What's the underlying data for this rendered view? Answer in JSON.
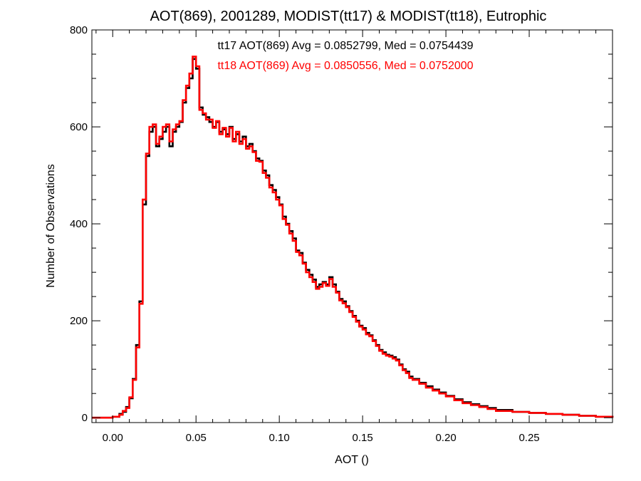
{
  "chart_data": {
    "type": "line",
    "title": "AOT(869), 2001289, MODIST(tt17) & MODIST(tt18), Eutrophic",
    "xlabel": "AOT ()",
    "ylabel": "Number of Observations",
    "xlim": [
      -0.0125,
      0.3
    ],
    "ylim": [
      -10,
      800
    ],
    "x_ticks": [
      0.0,
      0.05,
      0.1,
      0.15,
      0.2,
      0.25
    ],
    "x_tick_labels": [
      "0.00",
      "0.05",
      "0.10",
      "0.15",
      "0.20",
      "0.25"
    ],
    "y_ticks": [
      0,
      200,
      400,
      600,
      800
    ],
    "y_tick_labels": [
      "0",
      "200",
      "400",
      "600",
      "800"
    ],
    "grid": false,
    "step": "histogram",
    "annotations": [
      {
        "text": "tt17 AOT(869) Avg = 0.0852799, Med = 0.0754439",
        "color": "#000000"
      },
      {
        "text": "tt18 AOT(869) Avg = 0.0850556, Med = 0.0752000",
        "color": "#ff0000"
      }
    ],
    "series": [
      {
        "color": "#000000",
        "x": [
          -0.0125,
          0.0,
          0.004,
          0.006,
          0.008,
          0.01,
          0.012,
          0.014,
          0.016,
          0.018,
          0.02,
          0.022,
          0.024,
          0.026,
          0.028,
          0.03,
          0.032,
          0.034,
          0.036,
          0.038,
          0.04,
          0.042,
          0.044,
          0.046,
          0.048,
          0.05,
          0.052,
          0.054,
          0.056,
          0.058,
          0.06,
          0.062,
          0.064,
          0.066,
          0.068,
          0.07,
          0.072,
          0.074,
          0.076,
          0.078,
          0.08,
          0.082,
          0.084,
          0.086,
          0.088,
          0.09,
          0.092,
          0.094,
          0.096,
          0.098,
          0.1,
          0.102,
          0.104,
          0.106,
          0.108,
          0.11,
          0.112,
          0.114,
          0.116,
          0.118,
          0.12,
          0.122,
          0.124,
          0.126,
          0.128,
          0.13,
          0.132,
          0.134,
          0.136,
          0.138,
          0.14,
          0.142,
          0.144,
          0.146,
          0.148,
          0.15,
          0.152,
          0.154,
          0.156,
          0.158,
          0.16,
          0.162,
          0.164,
          0.166,
          0.168,
          0.17,
          0.172,
          0.174,
          0.176,
          0.178,
          0.18,
          0.184,
          0.188,
          0.192,
          0.196,
          0.2,
          0.205,
          0.21,
          0.215,
          0.22,
          0.225,
          0.23,
          0.24,
          0.25,
          0.26,
          0.27,
          0.28,
          0.29,
          0.3
        ],
        "y": [
          0,
          2,
          8,
          12,
          22,
          40,
          80,
          150,
          240,
          440,
          540,
          590,
          600,
          560,
          575,
          590,
          600,
          560,
          590,
          600,
          610,
          650,
          680,
          700,
          740,
          720,
          640,
          625,
          620,
          610,
          600,
          610,
          590,
          595,
          585,
          600,
          575,
          585,
          570,
          580,
          560,
          565,
          550,
          535,
          530,
          510,
          500,
          480,
          470,
          455,
          440,
          415,
          400,
          385,
          370,
          345,
          340,
          320,
          305,
          295,
          285,
          270,
          275,
          280,
          275,
          290,
          275,
          260,
          245,
          240,
          230,
          220,
          210,
          200,
          190,
          185,
          175,
          170,
          160,
          150,
          140,
          135,
          130,
          128,
          125,
          120,
          110,
          100,
          95,
          85,
          80,
          72,
          65,
          58,
          52,
          45,
          38,
          32,
          28,
          24,
          20,
          16,
          12,
          10,
          8,
          6,
          4,
          2,
          0
        ]
      },
      {
        "color": "#ff0000",
        "x": [
          -0.0125,
          0.0,
          0.004,
          0.006,
          0.008,
          0.01,
          0.012,
          0.014,
          0.016,
          0.018,
          0.02,
          0.022,
          0.024,
          0.026,
          0.028,
          0.03,
          0.032,
          0.034,
          0.036,
          0.038,
          0.04,
          0.042,
          0.044,
          0.046,
          0.048,
          0.05,
          0.052,
          0.054,
          0.056,
          0.058,
          0.06,
          0.062,
          0.064,
          0.066,
          0.068,
          0.07,
          0.072,
          0.074,
          0.076,
          0.078,
          0.08,
          0.082,
          0.084,
          0.086,
          0.088,
          0.09,
          0.092,
          0.094,
          0.096,
          0.098,
          0.1,
          0.102,
          0.104,
          0.106,
          0.108,
          0.11,
          0.112,
          0.114,
          0.116,
          0.118,
          0.12,
          0.122,
          0.124,
          0.126,
          0.128,
          0.13,
          0.132,
          0.134,
          0.136,
          0.138,
          0.14,
          0.142,
          0.144,
          0.146,
          0.148,
          0.15,
          0.152,
          0.154,
          0.156,
          0.158,
          0.16,
          0.162,
          0.164,
          0.166,
          0.168,
          0.17,
          0.172,
          0.174,
          0.176,
          0.178,
          0.18,
          0.184,
          0.188,
          0.192,
          0.196,
          0.2,
          0.205,
          0.21,
          0.215,
          0.22,
          0.225,
          0.23,
          0.24,
          0.25,
          0.26,
          0.27,
          0.28,
          0.29,
          0.3
        ],
        "y": [
          0,
          2,
          6,
          14,
          20,
          42,
          78,
          145,
          235,
          450,
          545,
          600,
          605,
          565,
          580,
          600,
          605,
          570,
          595,
          605,
          612,
          655,
          685,
          710,
          745,
          725,
          635,
          628,
          615,
          615,
          598,
          612,
          585,
          598,
          580,
          598,
          570,
          590,
          565,
          575,
          555,
          560,
          548,
          530,
          528,
          505,
          495,
          475,
          465,
          450,
          438,
          410,
          398,
          380,
          365,
          342,
          335,
          318,
          300,
          290,
          280,
          266,
          270,
          278,
          272,
          286,
          270,
          258,
          242,
          236,
          228,
          218,
          208,
          198,
          188,
          182,
          172,
          168,
          158,
          148,
          138,
          132,
          128,
          126,
          122,
          118,
          108,
          98,
          92,
          82,
          78,
          70,
          62,
          56,
          50,
          44,
          36,
          30,
          26,
          22,
          18,
          14,
          12,
          10,
          8,
          6,
          4,
          2,
          0
        ]
      }
    ]
  }
}
